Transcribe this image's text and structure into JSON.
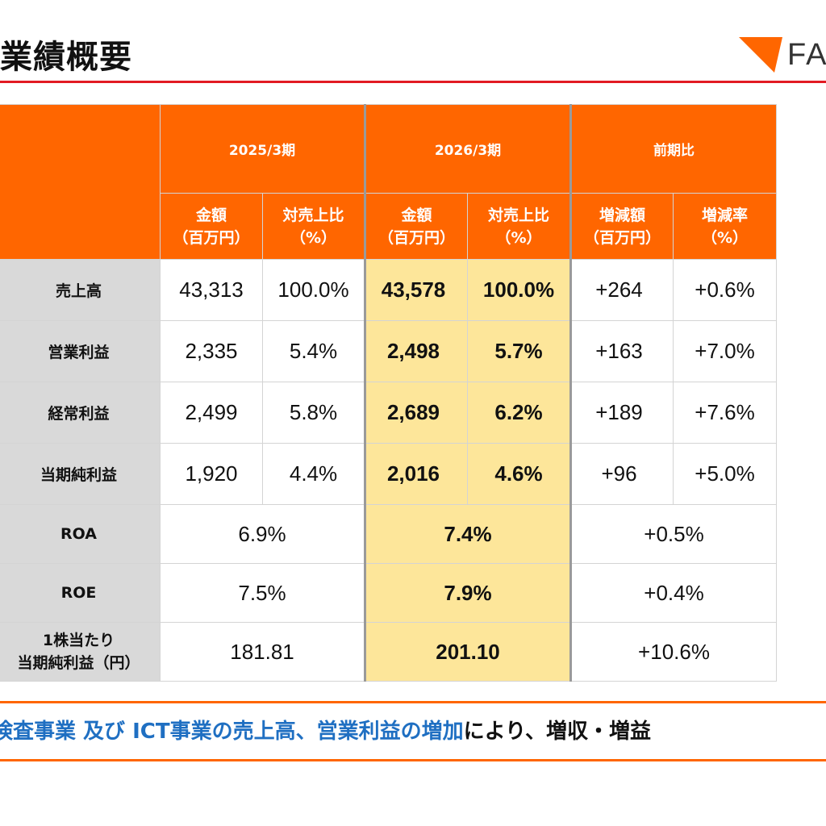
{
  "header": {
    "title": "業績概要",
    "logo_text": "FA",
    "colors": {
      "rule": "#e21b23",
      "accent": "#ff6600",
      "highlight": "#fde69a"
    }
  },
  "table": {
    "periods": [
      "2025/3期",
      "2026/3期",
      "前期比"
    ],
    "subheaders": [
      [
        "金額",
        "（百万円）"
      ],
      [
        "対売上比",
        "（%）"
      ],
      [
        "金額",
        "（百万円）"
      ],
      [
        "対売上比",
        "（%）"
      ],
      [
        "増減額",
        "（百万円）"
      ],
      [
        "増減率",
        "（%）"
      ]
    ],
    "rows": [
      {
        "label": "売上高",
        "cells": [
          "43,313",
          "100.0%",
          "43,578",
          "100.0%",
          "+264",
          "+0.6%"
        ]
      },
      {
        "label": "営業利益",
        "cells": [
          "2,335",
          "5.4%",
          "2,498",
          "5.7%",
          "+163",
          "+7.0%"
        ]
      },
      {
        "label": "経常利益",
        "cells": [
          "2,499",
          "5.8%",
          "2,689",
          "6.2%",
          "+189",
          "+7.6%"
        ]
      },
      {
        "label": "当期純利益",
        "cells": [
          "1,920",
          "4.4%",
          "2,016",
          "4.6%",
          "+96",
          "+5.0%"
        ]
      }
    ],
    "merged_rows": [
      {
        "label": [
          "ROA"
        ],
        "cells": [
          "6.9%",
          "7.4%",
          "+0.5%"
        ]
      },
      {
        "label": [
          "ROE"
        ],
        "cells": [
          "7.5%",
          "7.9%",
          "+0.4%"
        ]
      },
      {
        "label": [
          "1株当たり",
          "当期純利益（円）"
        ],
        "cells": [
          "181.81",
          "201.10",
          "+10.6%"
        ]
      }
    ]
  },
  "note": {
    "blue": "検査事業 及び ICT事業の売上高、営業利益の増加",
    "black": "により、増収・増益"
  }
}
